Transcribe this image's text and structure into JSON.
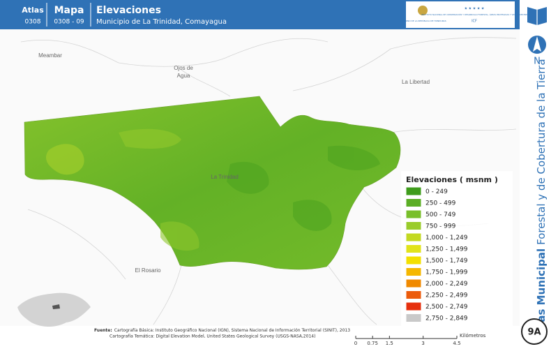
{
  "header": {
    "atlas_label": "Atlas",
    "atlas_code": "0308",
    "map_label": "Mapa",
    "map_code": "0308 - 09",
    "title": "Elevaciones",
    "subtitle": "Municipio de La Trinidad, Comayagua",
    "logo_left": "GOBIERNO DE LA REPÚBLICA DE HONDURAS",
    "logo_right": "INSTITUTO NACIONAL DE CONSERVACIÓN Y DESARROLLO FORESTAL, ÁREAS PROTEGIDAS Y VIDA SILVESTRE",
    "logo_abbr": "ICF"
  },
  "side": {
    "north": "N",
    "series_bold": "Atlas Municipal",
    "series_rest": "Forestal y de Cobertura de la Tierra",
    "badge": "9A"
  },
  "places": {
    "meambar": "Meambar",
    "ojos_1": "Ojos de",
    "ojos_2": "Agua",
    "la_libertad": "La Libertad",
    "la_trinidad": "La Trinidad",
    "el_rosario": "El Rosario"
  },
  "legend": {
    "title": "Elevaciones ( msnm )",
    "items": [
      {
        "label": "0 - 249",
        "color": "#3f9c1c"
      },
      {
        "label": "250 - 499",
        "color": "#5bae25"
      },
      {
        "label": "500 - 749",
        "color": "#79bf2b"
      },
      {
        "label": "750 - 999",
        "color": "#9acc2b"
      },
      {
        "label": "1,000 - 1,249",
        "color": "#c3d922"
      },
      {
        "label": "1,250 - 1,499",
        "color": "#e1e31b"
      },
      {
        "label": "1,500 - 1,749",
        "color": "#f3e000"
      },
      {
        "label": "1,750 - 1,999",
        "color": "#f5b700"
      },
      {
        "label": "2,000 - 2,249",
        "color": "#f08a00"
      },
      {
        "label": "2,250 - 2,499",
        "color": "#ec5b0b"
      },
      {
        "label": "2,500 - 2,749",
        "color": "#e6300e"
      },
      {
        "label": "2,750 - 2,849",
        "color": "#c9c9c9"
      }
    ]
  },
  "footer": {
    "source_label": "Fuente:",
    "source_1": "Cartografía Básica: Instituto Geográfico Nacional (IGN), Sistema Nacional de Información Territorial (SINIT), 2013",
    "source_2": "Cartografía Temática: Digital Elevation Model, United States Geological Survey (USGS-NASA,2014)"
  },
  "scale": {
    "unit": "Kilómetros",
    "ticks": [
      0,
      0.75,
      1.5,
      3,
      4.5
    ]
  }
}
